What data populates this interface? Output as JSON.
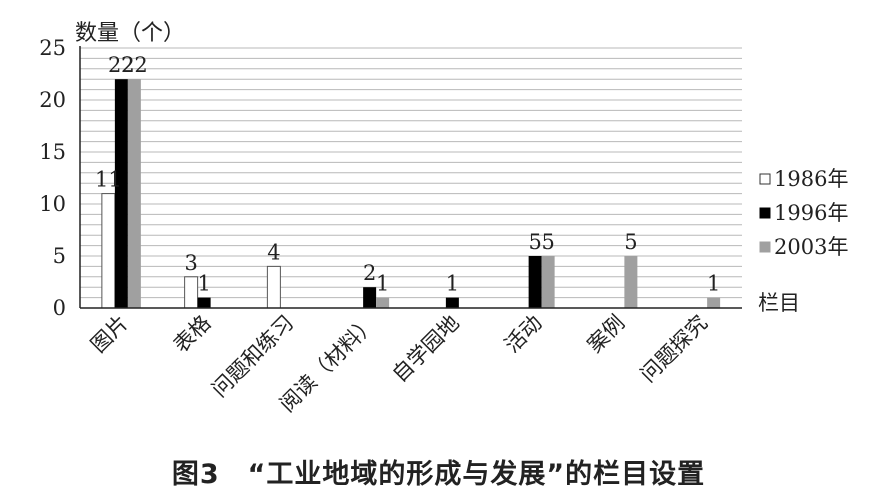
{
  "chart_data": {
    "type": "bar",
    "ylabel": "数量（个）",
    "xlabel": "栏目",
    "ylim": [
      0,
      25
    ],
    "yticks": [
      0,
      5,
      10,
      15,
      20,
      25
    ],
    "grid": true,
    "legend_position": "right",
    "categories": [
      "图片",
      "表格",
      "问题和练习",
      "阅读（材料）",
      "自学园地",
      "活动",
      "案例",
      "问题探究"
    ],
    "series": [
      {
        "name": "1986年",
        "color": "#ffffff",
        "values": [
          11,
          3,
          4,
          0,
          0,
          0,
          0,
          0
        ],
        "labels": [
          "11",
          "3",
          "4",
          "",
          "",
          "",
          "",
          ""
        ]
      },
      {
        "name": "1996年",
        "color": "#000000",
        "values": [
          22,
          1,
          0,
          2,
          1,
          5,
          0,
          0
        ],
        "labels": [
          "22",
          "1",
          "",
          "2",
          "1",
          "5",
          "",
          ""
        ]
      },
      {
        "name": "2003年",
        "color": "#a0a0a0",
        "values": [
          22,
          0,
          0,
          1,
          0,
          5,
          5,
          1
        ],
        "labels": [
          "22",
          "",
          "",
          "1",
          "",
          "5",
          "5",
          "1"
        ]
      }
    ]
  },
  "caption": "图3　“工业地域的形成与发展”的栏目设置"
}
